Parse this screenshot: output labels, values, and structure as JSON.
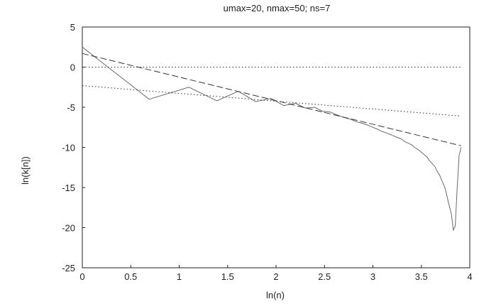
{
  "chart_data": {
    "type": "line",
    "title": "umax=20, nmax=50; ns=7",
    "xlabel": "ln(n)",
    "ylabel": "ln(k[n])",
    "xlim": [
      0,
      4
    ],
    "ylim": [
      -25,
      5
    ],
    "xticks": [
      0,
      0.5,
      1,
      1.5,
      2,
      2.5,
      3,
      3.5,
      4
    ],
    "xtick_labels": [
      "0",
      "0.5",
      "1",
      "1.5",
      "2",
      "2.5",
      "3",
      "3.5",
      "4"
    ],
    "yticks": [
      5,
      0,
      -5,
      -10,
      -15,
      -20,
      -25
    ],
    "ytick_labels": [
      "5",
      "0",
      "-5",
      "-10",
      "-15",
      "-20",
      "-25"
    ],
    "grid": false,
    "series": [
      {
        "style": "solid",
        "color": "#6a6a6a",
        "x": [
          0.0,
          0.69,
          1.1,
          1.39,
          1.61,
          1.79,
          1.95,
          2.08,
          2.2,
          2.3,
          2.4,
          2.48,
          2.56,
          2.64,
          2.71,
          2.77,
          2.83,
          2.89,
          2.94,
          3.0,
          3.04,
          3.09,
          3.14,
          3.18,
          3.22,
          3.26,
          3.3,
          3.33,
          3.37,
          3.4,
          3.43,
          3.47,
          3.5,
          3.53,
          3.56,
          3.58,
          3.61,
          3.64,
          3.66,
          3.69,
          3.71,
          3.74,
          3.76,
          3.78,
          3.81,
          3.83,
          3.85,
          3.87,
          3.89,
          3.91
        ],
        "y": [
          2.5,
          -4.0,
          -2.5,
          -4.2,
          -3.0,
          -4.3,
          -3.9,
          -4.8,
          -4.5,
          -5.1,
          -5.0,
          -5.5,
          -5.6,
          -6.0,
          -6.3,
          -6.5,
          -6.8,
          -7.0,
          -7.2,
          -7.5,
          -7.7,
          -8.0,
          -8.2,
          -8.4,
          -8.6,
          -8.8,
          -9.0,
          -9.3,
          -9.5,
          -9.7,
          -10.0,
          -10.3,
          -10.6,
          -10.9,
          -11.2,
          -11.6,
          -12.0,
          -12.4,
          -12.9,
          -13.5,
          -14.1,
          -14.9,
          -15.8,
          -16.9,
          -18.3,
          -20.3,
          -19.8,
          -15.0,
          -11.0,
          -10.0
        ]
      },
      {
        "style": "dashed",
        "color": "#333333",
        "x": [
          0.0,
          3.91
        ],
        "y": [
          1.7,
          -9.8
        ]
      },
      {
        "style": "dotted",
        "color": "#333333",
        "x": [
          0.0,
          3.91
        ],
        "y": [
          -2.3,
          -6.1
        ]
      },
      {
        "style": "dotted",
        "color": "#333333",
        "x": [
          0.0,
          3.91
        ],
        "y": [
          0.0,
          0.0
        ]
      }
    ]
  }
}
